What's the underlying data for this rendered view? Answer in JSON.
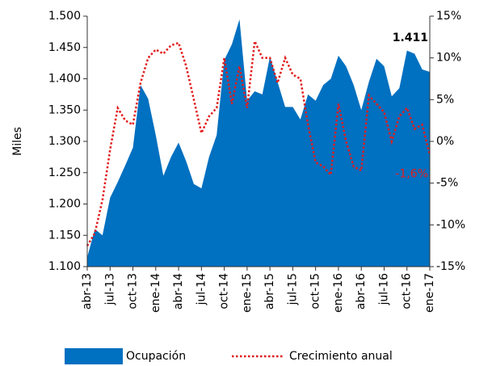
{
  "chart_data": {
    "type": "area_line",
    "ylabel": "Miles",
    "categories": [
      "abr-13",
      null,
      null,
      "jul-13",
      null,
      null,
      "oct-13",
      null,
      null,
      "ene-14",
      null,
      null,
      "abr-14",
      null,
      null,
      "jul-14",
      null,
      null,
      "oct-14",
      null,
      null,
      "ene-15",
      null,
      null,
      "abr-15",
      null,
      null,
      "jul-15",
      null,
      null,
      "oct-15",
      null,
      null,
      "ene-16",
      null,
      null,
      "abr-16",
      null,
      null,
      "jul-16",
      null,
      null,
      "oct-16",
      null,
      null,
      "ene-17"
    ],
    "series": [
      {
        "name": "Ocupación",
        "color": "#0070c0",
        "axis": "y",
        "values": [
          1115,
          1160,
          1150,
          1210,
          1235,
          1262,
          1290,
          1390,
          1368,
          1310,
          1245,
          1275,
          1298,
          1268,
          1232,
          1225,
          1275,
          1310,
          1430,
          1455,
          1495,
          1365,
          1380,
          1375,
          1435,
          1395,
          1355,
          1355,
          1335,
          1375,
          1365,
          1390,
          1400,
          1437,
          1420,
          1390,
          1350,
          1395,
          1432,
          1420,
          1372,
          1385,
          1445,
          1440,
          1415,
          1411
        ],
        "value_labels": [
          null,
          null,
          null,
          null,
          null,
          null,
          null,
          null,
          null,
          null,
          null,
          null,
          null,
          null,
          null,
          null,
          null,
          null,
          null,
          null,
          null,
          null,
          null,
          null,
          null,
          null,
          null,
          null,
          null,
          null,
          null,
          null,
          null,
          null,
          null,
          null,
          null,
          null,
          null,
          null,
          null,
          null,
          null,
          null,
          null,
          "1.411"
        ]
      },
      {
        "name": "Crecimiento anual",
        "color": "#e31b1b",
        "axis": "y2",
        "values": [
          -12.5,
          -11,
          -7,
          -1,
          4,
          2.5,
          2,
          7,
          10,
          11,
          10.5,
          11.5,
          11.8,
          9,
          5,
          1,
          3,
          4,
          10,
          4.5,
          9,
          4,
          12,
          10,
          10,
          7,
          10,
          8,
          7.5,
          2,
          -2.5,
          -3,
          -4,
          4.5,
          0,
          -3,
          -3.5,
          5.5,
          4.5,
          3.5,
          0,
          3,
          4,
          1.5,
          2,
          -1.6
        ],
        "value_labels": [
          null,
          null,
          null,
          null,
          null,
          null,
          null,
          null,
          null,
          null,
          null,
          null,
          null,
          null,
          null,
          null,
          null,
          null,
          null,
          null,
          null,
          null,
          null,
          null,
          null,
          null,
          null,
          null,
          null,
          null,
          null,
          null,
          null,
          null,
          null,
          null,
          null,
          null,
          null,
          null,
          null,
          null,
          null,
          null,
          null,
          "-1,6%"
        ]
      }
    ],
    "ylim": [
      1100,
      1500
    ],
    "yticks": [
      {
        "value": 1100,
        "label": "1.100"
      },
      {
        "value": 1150,
        "label": "1.150"
      },
      {
        "value": 1200,
        "label": "1.200"
      },
      {
        "value": 1250,
        "label": "1.250"
      },
      {
        "value": 1300,
        "label": "1.300"
      },
      {
        "value": 1350,
        "label": "1.350"
      },
      {
        "value": 1400,
        "label": "1.400"
      },
      {
        "value": 1450,
        "label": "1.450"
      },
      {
        "value": 1500,
        "label": "1.500"
      }
    ],
    "y2lim": [
      -15,
      15
    ],
    "y2ticks": [
      {
        "value": -15,
        "label": "-15%"
      },
      {
        "value": -10,
        "label": "-10%"
      },
      {
        "value": -5,
        "label": "-5%"
      },
      {
        "value": 0,
        "label": "0%"
      },
      {
        "value": 5,
        "label": "5%"
      },
      {
        "value": 10,
        "label": "10%"
      },
      {
        "value": 15,
        "label": "15%"
      }
    ],
    "legend": "bottom"
  }
}
